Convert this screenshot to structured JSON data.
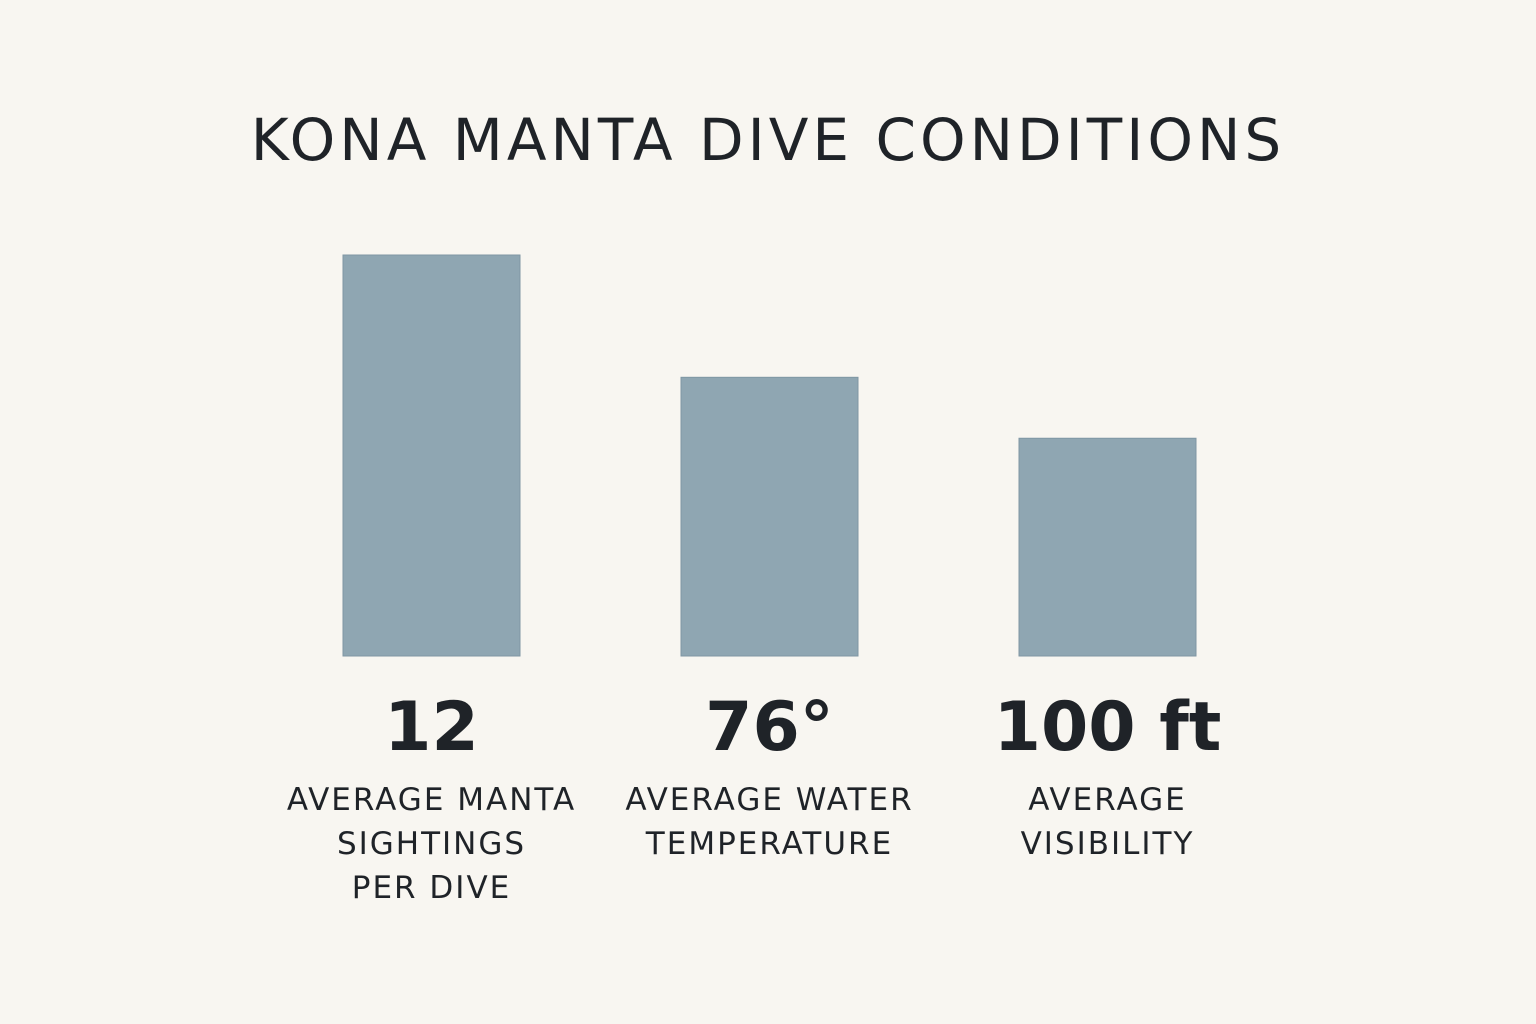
{
  "colors": {
    "background": "#f8f6f1",
    "bar": "#8fa6b2",
    "bar_stroke": "#7f97a4",
    "text": "#1f2328"
  },
  "chart_data": {
    "type": "bar",
    "title": "KONA MANTA DIVE CONDITIONS",
    "categories": [
      [
        "AVERAGE MANTA",
        "SIGHTINGS",
        "PER DIVE"
      ],
      [
        "AVERAGE WATER",
        "TEMPERATURE"
      ],
      [
        "AVERAGE",
        "VISIBILITY"
      ]
    ],
    "values": [
      12,
      76,
      100
    ],
    "value_labels": [
      "12",
      "76°",
      "100 ft"
    ],
    "relative_heights": [
      1.0,
      0.695,
      0.543
    ],
    "grid": false,
    "legend": "none",
    "axes": "hidden"
  }
}
